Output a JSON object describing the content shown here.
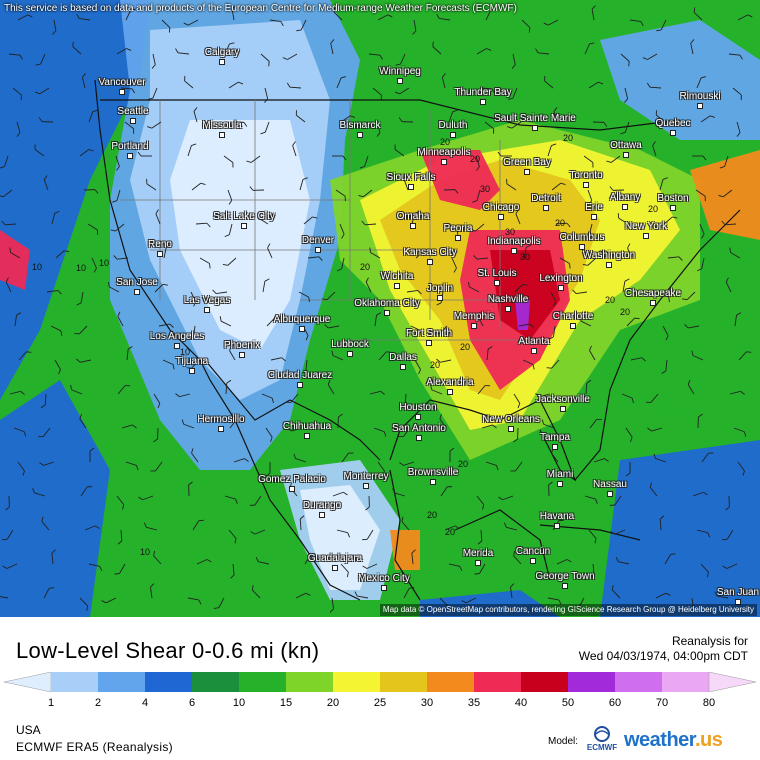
{
  "notice": "This service is based on data and products of the European Centre for Medium-range Weather Forecasts (ECMWF)",
  "attribution": "Map data © OpenStreetMap contributors, rendering GIScience Research Group @ Heidelberg University",
  "footer": {
    "title": "Low-Level Shear 0-0.6 mi (kn)",
    "reanalysis_label": "Reanalysis for",
    "valid_time": "Wed 04/03/1974, 04:00pm CDT",
    "region": "USA",
    "model_source": "ECMWF ERA5 (Reanalysis)",
    "model_label": "Model:",
    "ecmwf_logo_text": "ECMWF",
    "brand_main": "weather",
    "brand_dot": ".us"
  },
  "colorbar": {
    "ticks": [
      "1",
      "2",
      "4",
      "6",
      "10",
      "15",
      "20",
      "25",
      "30",
      "35",
      "40",
      "50",
      "60",
      "70",
      "80"
    ],
    "colors": [
      "#dfeeff",
      "#a8cff8",
      "#63a5ec",
      "#1f68d4",
      "#1c8f3a",
      "#25b22a",
      "#7fd42a",
      "#f4f432",
      "#e3c51c",
      "#f28a1d",
      "#ee2a55",
      "#c8001e",
      "#a22ad8",
      "#cf6ff0",
      "#eaa8f4",
      "#f6d8f8"
    ]
  },
  "cities": [
    {
      "name": "Calgary",
      "icon": "city-marker"
    },
    {
      "name": "Winnipeg",
      "icon": "city-marker"
    },
    {
      "name": "Thunder Bay",
      "icon": "city-marker"
    },
    {
      "name": "Rimouski",
      "icon": "city-marker"
    },
    {
      "name": "Vancouver",
      "icon": "city-marker"
    },
    {
      "name": "Seattle",
      "icon": "city-marker"
    },
    {
      "name": "Missoula",
      "icon": "city-marker"
    },
    {
      "name": "Bismarck",
      "icon": "city-marker"
    },
    {
      "name": "Duluth",
      "icon": "city-marker"
    },
    {
      "name": "Sault Sainte Marie",
      "icon": "city-marker"
    },
    {
      "name": "Quebec",
      "icon": "city-marker"
    },
    {
      "name": "Portland",
      "icon": "city-marker"
    },
    {
      "name": "Minneapolis",
      "icon": "city-marker"
    },
    {
      "name": "Green Bay",
      "icon": "city-marker"
    },
    {
      "name": "Ottawa",
      "icon": "city-marker"
    },
    {
      "name": "Sioux Falls",
      "icon": "city-marker"
    },
    {
      "name": "Toronto",
      "icon": "city-marker"
    },
    {
      "name": "Boston",
      "icon": "city-marker"
    },
    {
      "name": "Albany",
      "icon": "city-marker"
    },
    {
      "name": "Salt Lake City",
      "icon": "city-marker"
    },
    {
      "name": "Omaha",
      "icon": "city-marker"
    },
    {
      "name": "Chicago",
      "icon": "city-marker"
    },
    {
      "name": "Detroit",
      "icon": "city-marker"
    },
    {
      "name": "Erie",
      "icon": "city-marker"
    },
    {
      "name": "New York",
      "icon": "city-marker"
    },
    {
      "name": "Reno",
      "icon": "city-marker"
    },
    {
      "name": "Denver",
      "icon": "city-marker"
    },
    {
      "name": "Peoria",
      "icon": "city-marker"
    },
    {
      "name": "Indianapolis",
      "icon": "city-marker"
    },
    {
      "name": "Columbus",
      "icon": "city-marker"
    },
    {
      "name": "Kansas City",
      "icon": "city-marker"
    },
    {
      "name": "Washington",
      "icon": "city-marker"
    },
    {
      "name": "San Jose",
      "icon": "city-marker"
    },
    {
      "name": "Wichita",
      "icon": "city-marker"
    },
    {
      "name": "St. Louis",
      "icon": "city-marker"
    },
    {
      "name": "Lexington",
      "icon": "city-marker"
    },
    {
      "name": "Joplin",
      "icon": "city-marker"
    },
    {
      "name": "Chesapeake",
      "icon": "city-marker"
    },
    {
      "name": "Las Vegas",
      "icon": "city-marker"
    },
    {
      "name": "Oklahoma City",
      "icon": "city-marker"
    },
    {
      "name": "Nashville",
      "icon": "city-marker"
    },
    {
      "name": "Albuquerque",
      "icon": "city-marker"
    },
    {
      "name": "Memphis",
      "icon": "city-marker"
    },
    {
      "name": "Charlotte",
      "icon": "city-marker"
    },
    {
      "name": "Los Angeles",
      "icon": "city-marker"
    },
    {
      "name": "Fort Smith",
      "icon": "city-marker"
    },
    {
      "name": "Phoenix",
      "icon": "city-marker"
    },
    {
      "name": "Lubbock",
      "icon": "city-marker"
    },
    {
      "name": "Atlanta",
      "icon": "city-marker"
    },
    {
      "name": "Tijuana",
      "icon": "city-marker"
    },
    {
      "name": "Dallas",
      "icon": "city-marker"
    },
    {
      "name": "Ciudad Juarez",
      "icon": "city-marker"
    },
    {
      "name": "Alexandria",
      "icon": "city-marker"
    },
    {
      "name": "Jacksonville",
      "icon": "city-marker"
    },
    {
      "name": "Hermosillo",
      "icon": "city-marker"
    },
    {
      "name": "Houston",
      "icon": "city-marker"
    },
    {
      "name": "San Antonio",
      "icon": "city-marker"
    },
    {
      "name": "New Orleans",
      "icon": "city-marker"
    },
    {
      "name": "Chihuahua",
      "icon": "city-marker"
    },
    {
      "name": "Tampa",
      "icon": "city-marker"
    },
    {
      "name": "Monterrey",
      "icon": "city-marker"
    },
    {
      "name": "Brownsville",
      "icon": "city-marker"
    },
    {
      "name": "Miami",
      "icon": "city-marker"
    },
    {
      "name": "Gomez Palacio",
      "icon": "city-marker"
    },
    {
      "name": "Nassau",
      "icon": "city-marker"
    },
    {
      "name": "Durango",
      "icon": "city-marker"
    },
    {
      "name": "Havana",
      "icon": "city-marker"
    },
    {
      "name": "Merida",
      "icon": "city-marker"
    },
    {
      "name": "Cancún",
      "icon": "city-marker"
    },
    {
      "name": "Guadalajara",
      "icon": "city-marker"
    },
    {
      "name": "George Town",
      "icon": "city-marker"
    },
    {
      "name": "Mexico City",
      "icon": "city-marker"
    },
    {
      "name": "San Juan",
      "icon": "city-marker"
    }
  ],
  "contour_labels": [
    "10",
    "10",
    "10",
    "10",
    "20",
    "20",
    "20",
    "20",
    "20",
    "20",
    "20",
    "30",
    "30",
    "30",
    "20",
    "20",
    "20",
    "20",
    "20",
    "10",
    "20",
    "20"
  ]
}
